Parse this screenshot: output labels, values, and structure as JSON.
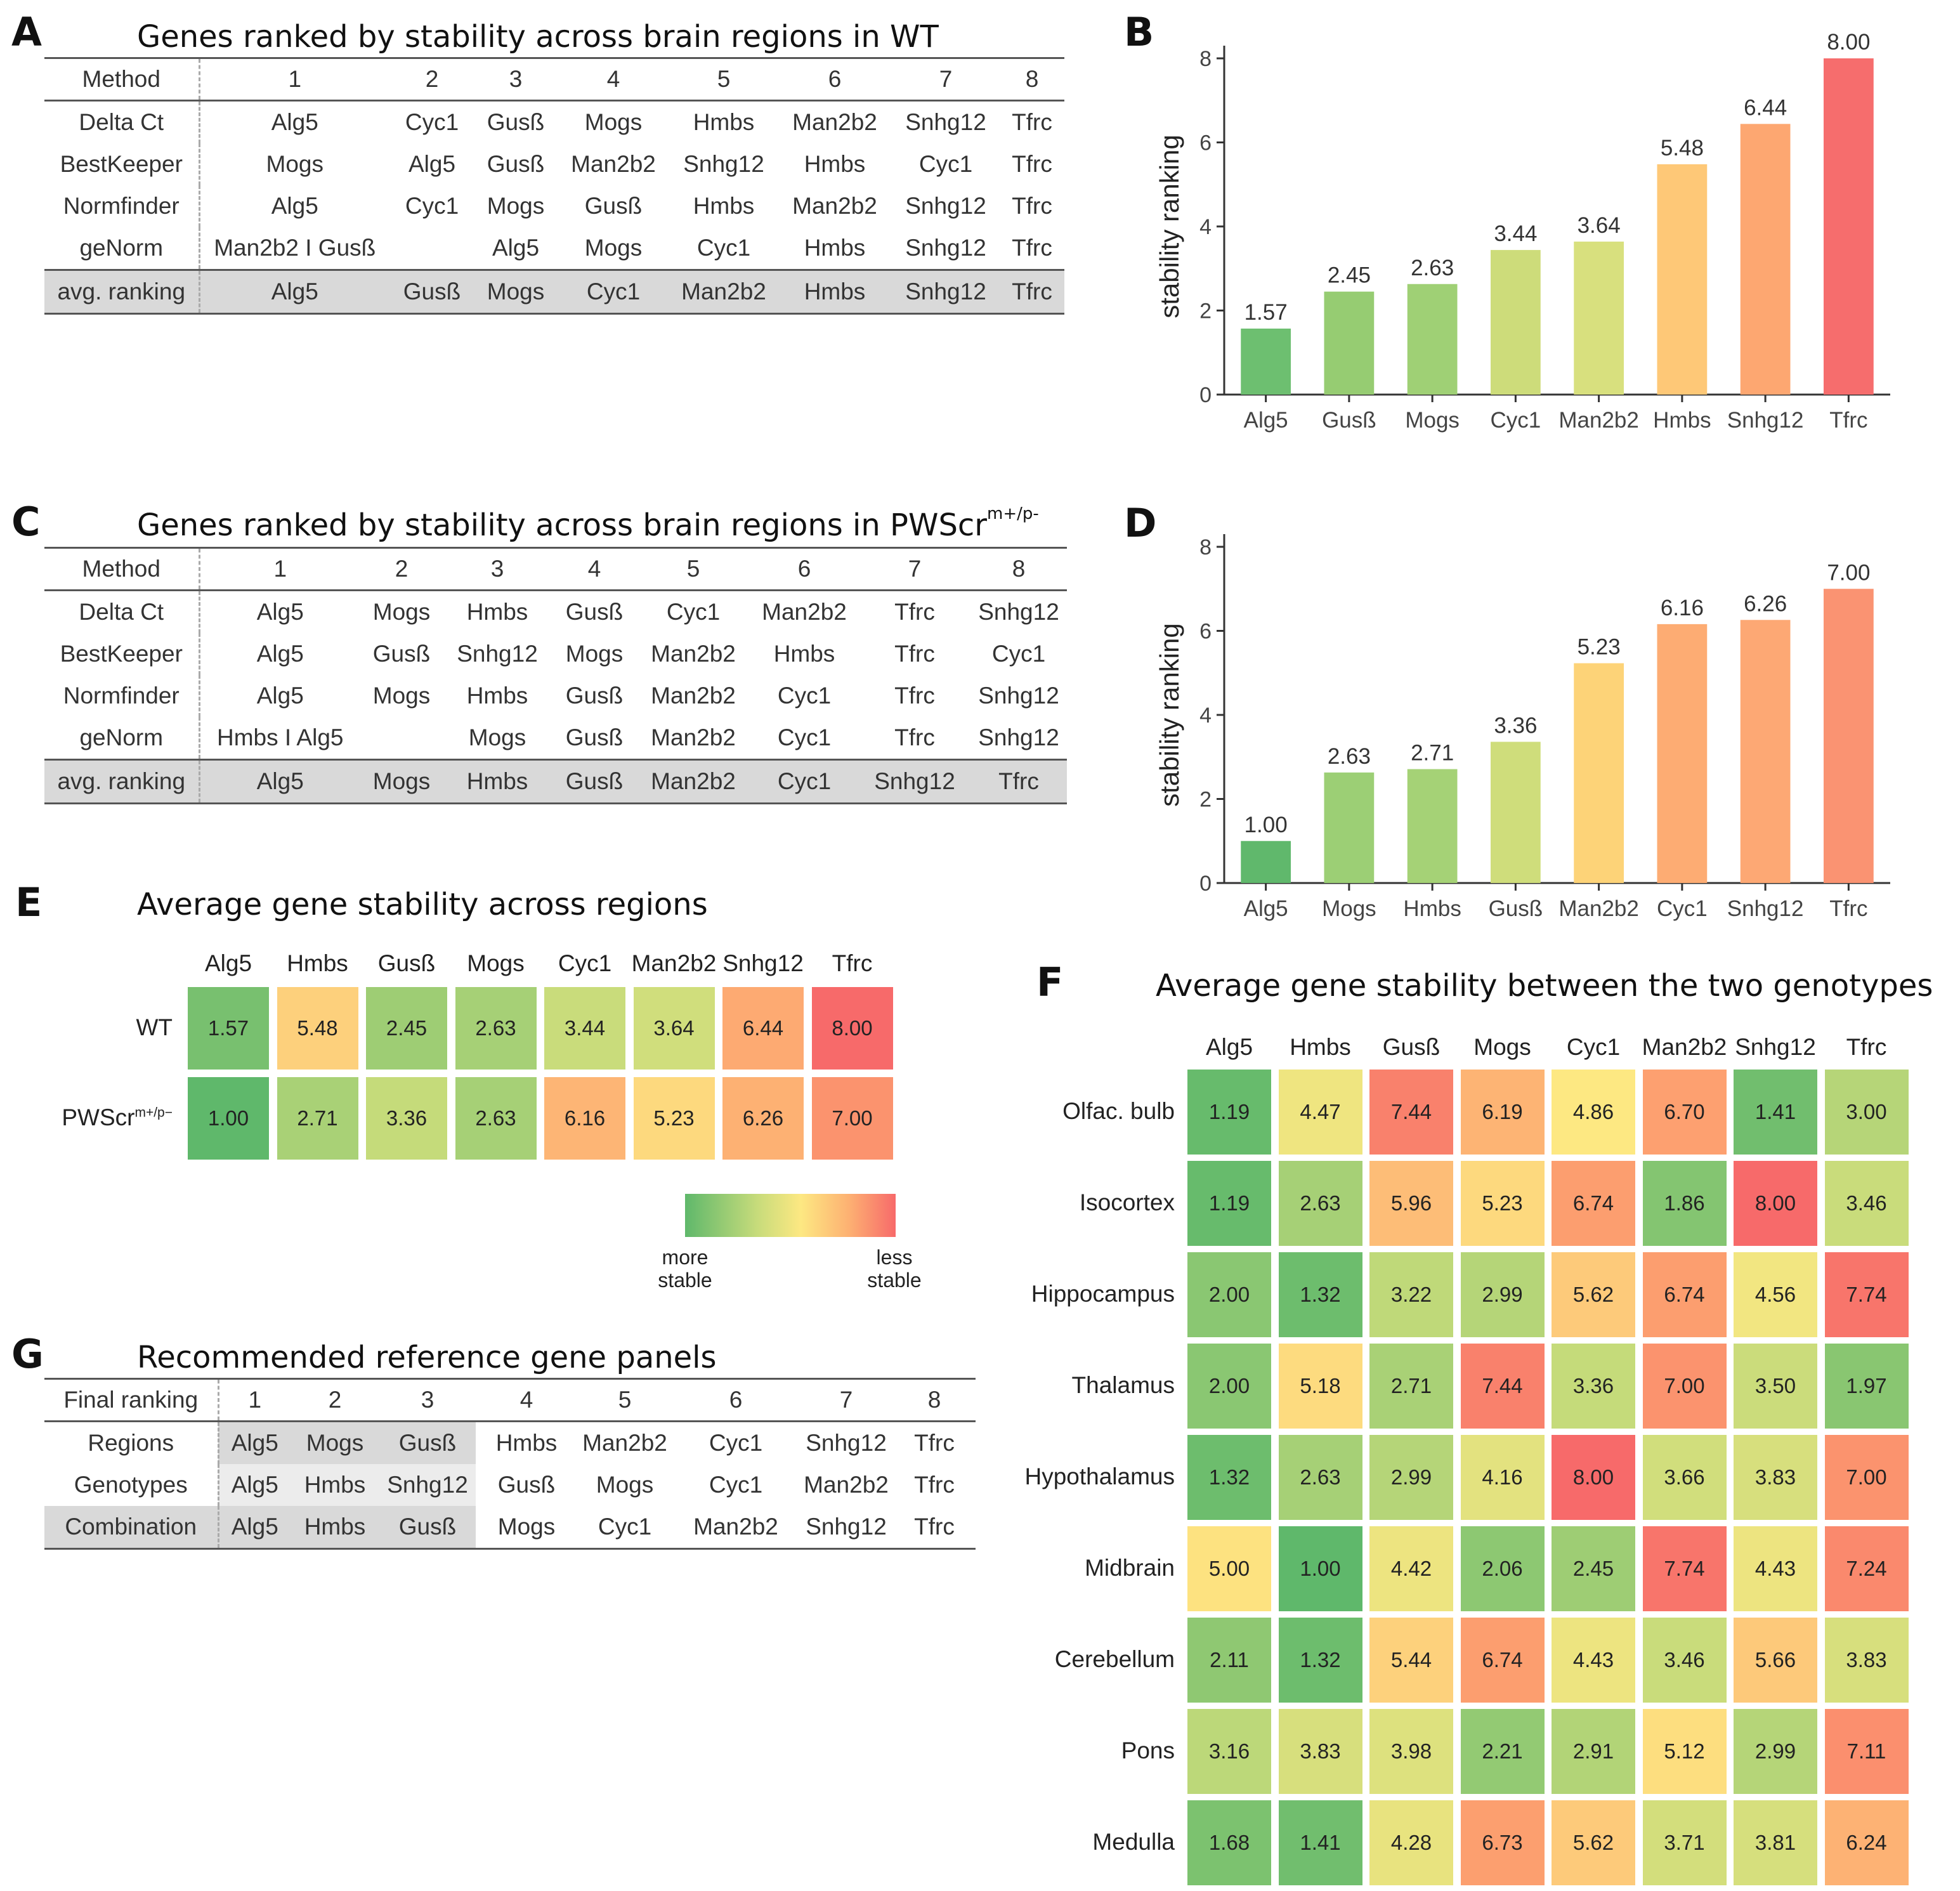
{
  "panels": {
    "A": {
      "letter": "A",
      "title": "Genes ranked by stability across brain regions in WT",
      "header": [
        "Method",
        "1",
        "2",
        "3",
        "4",
        "5",
        "6",
        "7",
        "8"
      ],
      "rows": [
        [
          "Delta Ct",
          "Alg5",
          "Cyc1",
          "Gusß",
          "Mogs",
          "Hmbs",
          "Man2b2",
          "Snhg12",
          "Tfrc"
        ],
        [
          "BestKeeper",
          "Mogs",
          "Alg5",
          "Gusß",
          "Man2b2",
          "Snhg12",
          "Hmbs",
          "Cyc1",
          "Tfrc"
        ],
        [
          "Normfinder",
          "Alg5",
          "Cyc1",
          "Mogs",
          "Gusß",
          "Hmbs",
          "Man2b2",
          "Snhg12",
          "Tfrc"
        ],
        [
          "geNorm",
          "Man2b2 I Gusß",
          "",
          "Alg5",
          "Mogs",
          "Cyc1",
          "Hmbs",
          "Snhg12",
          "Tfrc"
        ]
      ],
      "avg": [
        "avg. ranking",
        "Alg5",
        "Gusß",
        "Mogs",
        "Cyc1",
        "Man2b2",
        "Hmbs",
        "Snhg12",
        "Tfrc"
      ]
    },
    "C": {
      "letter": "C",
      "title": "Genes ranked by stability across brain regions in PWScr",
      "title_sup": "m+/p-",
      "header": [
        "Method",
        "1",
        "2",
        "3",
        "4",
        "5",
        "6",
        "7",
        "8"
      ],
      "rows": [
        [
          "Delta Ct",
          "Alg5",
          "Mogs",
          "Hmbs",
          "Gusß",
          "Cyc1",
          "Man2b2",
          "Tfrc",
          "Snhg12"
        ],
        [
          "BestKeeper",
          "Alg5",
          "Gusß",
          "Snhg12",
          "Mogs",
          "Man2b2",
          "Hmbs",
          "Tfrc",
          "Cyc1"
        ],
        [
          "Normfinder",
          "Alg5",
          "Mogs",
          "Hmbs",
          "Gusß",
          "Man2b2",
          "Cyc1",
          "Tfrc",
          "Snhg12"
        ],
        [
          "geNorm",
          "Hmbs I Alg5",
          "",
          "Mogs",
          "Gusß",
          "Man2b2",
          "Cyc1",
          "Tfrc",
          "Snhg12"
        ]
      ],
      "avg": [
        "avg. ranking",
        "Alg5",
        "Mogs",
        "Hmbs",
        "Gusß",
        "Man2b2",
        "Cyc1",
        "Snhg12",
        "Tfrc"
      ]
    },
    "E": {
      "letter": "E",
      "title": "Average gene stability across regions",
      "legend_more": "more stable",
      "legend_less": "less stable",
      "legend_more_lines": [
        "more",
        "stable"
      ],
      "legend_less_lines": [
        "less",
        "stable"
      ]
    },
    "F": {
      "letter": "F",
      "title": "Average gene stability between the two genotypes"
    },
    "G": {
      "letter": "G",
      "title": "Recommended reference gene panels",
      "header": [
        "Final ranking",
        "1",
        "2",
        "3",
        "4",
        "5",
        "6",
        "7",
        "8"
      ],
      "rows": [
        [
          "Regions",
          "Alg5",
          "Mogs",
          "Gusß",
          "Hmbs",
          "Man2b2",
          "Cyc1",
          "Snhg12",
          "Tfrc"
        ],
        [
          "Genotypes",
          "Alg5",
          "Hmbs",
          "Snhg12",
          "Gusß",
          "Mogs",
          "Cyc1",
          "Man2b2",
          "Tfrc"
        ],
        [
          "Combination",
          "Alg5",
          "Hmbs",
          "Gusß",
          "Mogs",
          "Cyc1",
          "Man2b2",
          "Snhg12",
          "Tfrc"
        ]
      ]
    }
  },
  "chart_data": [
    {
      "id": "B",
      "type": "bar",
      "letter": "B",
      "categories": [
        "Alg5",
        "Gusß",
        "Mogs",
        "Cyc1",
        "Man2b2",
        "Hmbs",
        "Snhg12",
        "Tfrc"
      ],
      "values": [
        1.57,
        2.45,
        2.63,
        3.44,
        3.64,
        5.48,
        6.44,
        8.0
      ],
      "labels": [
        "1.57",
        "2.45",
        "2.63",
        "3.44",
        "3.64",
        "5.48",
        "6.44",
        "8.00"
      ],
      "ylabel": "stability ranking",
      "ylim": [
        0,
        8
      ],
      "yticks": [
        "0",
        "2",
        "4",
        "6",
        "8"
      ],
      "colors": [
        "#6dbf70",
        "#96cc72",
        "#9fd075",
        "#cddc7a",
        "#d8e07e",
        "#fec877",
        "#fda771",
        "#f66d6d"
      ]
    },
    {
      "id": "D",
      "type": "bar",
      "letter": "D",
      "categories": [
        "Alg5",
        "Mogs",
        "Hmbs",
        "Gusß",
        "Man2b2",
        "Cyc1",
        "Snhg12",
        "Tfrc"
      ],
      "values": [
        1.0,
        2.63,
        2.71,
        3.36,
        5.23,
        6.16,
        6.26,
        7.0
      ],
      "labels": [
        "1.00",
        "2.63",
        "2.71",
        "3.36",
        "5.23",
        "6.16",
        "6.26",
        "7.00"
      ],
      "ylabel": "stability ranking",
      "ylim": [
        0,
        8
      ],
      "yticks": [
        "0",
        "2",
        "4",
        "6",
        "8"
      ],
      "colors": [
        "#60b86c",
        "#9ccf75",
        "#a5d276",
        "#cfdd7b",
        "#fdd378",
        "#fdac73",
        "#fda874",
        "#fa9372"
      ]
    },
    {
      "id": "E",
      "type": "heatmap",
      "columns": [
        "Alg5",
        "Hmbs",
        "Gusß",
        "Mogs",
        "Cyc1",
        "Man2b2",
        "Snhg12",
        "Tfrc"
      ],
      "rows": [
        "WT",
        "PWScr"
      ],
      "row_sups": [
        "",
        "m+/p−"
      ],
      "values": [
        [
          1.57,
          5.48,
          2.45,
          2.63,
          3.44,
          3.64,
          6.44,
          8.0
        ],
        [
          1.0,
          2.71,
          3.36,
          2.63,
          6.16,
          5.23,
          6.26,
          7.0
        ]
      ],
      "labels": [
        [
          "1.57",
          "5.48",
          "2.45",
          "2.63",
          "3.44",
          "3.64",
          "6.44",
          "8.00"
        ],
        [
          "1.00",
          "2.71",
          "3.36",
          "2.63",
          "6.16",
          "5.23",
          "6.26",
          "7.00"
        ]
      ],
      "scale_min": 1,
      "scale_max": 8
    },
    {
      "id": "F",
      "type": "heatmap",
      "columns": [
        "Alg5",
        "Hmbs",
        "Gusß",
        "Mogs",
        "Cyc1",
        "Man2b2",
        "Snhg12",
        "Tfrc"
      ],
      "rows": [
        "Olfac. bulb",
        "Isocortex",
        "Hippocampus",
        "Thalamus",
        "Hypothalamus",
        "Midbrain",
        "Cerebellum",
        "Pons",
        "Medulla"
      ],
      "values": [
        [
          1.19,
          4.47,
          7.44,
          6.19,
          4.86,
          6.7,
          1.41,
          3.0
        ],
        [
          1.19,
          2.63,
          5.96,
          5.23,
          6.74,
          1.86,
          8.0,
          3.46
        ],
        [
          2.0,
          1.32,
          3.22,
          2.99,
          5.62,
          6.74,
          4.56,
          7.74
        ],
        [
          2.0,
          5.18,
          2.71,
          7.44,
          3.36,
          7.0,
          3.5,
          1.97
        ],
        [
          1.32,
          2.63,
          2.99,
          4.16,
          8.0,
          3.66,
          3.83,
          7.0
        ],
        [
          5.0,
          1.0,
          4.42,
          2.06,
          2.45,
          7.74,
          4.43,
          7.24
        ],
        [
          2.11,
          1.32,
          5.44,
          6.74,
          4.43,
          3.46,
          5.66,
          3.83
        ],
        [
          3.16,
          3.83,
          3.98,
          2.21,
          2.91,
          5.12,
          2.99,
          7.11
        ],
        [
          1.68,
          1.41,
          4.28,
          6.73,
          5.62,
          3.71,
          3.81,
          6.24
        ]
      ],
      "labels": [
        [
          "1.19",
          "4.47",
          "7.44",
          "6.19",
          "4.86",
          "6.70",
          "1.41",
          "3.00"
        ],
        [
          "1.19",
          "2.63",
          "5.96",
          "5.23",
          "6.74",
          "1.86",
          "8.00",
          "3.46"
        ],
        [
          "2.00",
          "1.32",
          "3.22",
          "2.99",
          "5.62",
          "6.74",
          "4.56",
          "7.74"
        ],
        [
          "2.00",
          "5.18",
          "2.71",
          "7.44",
          "3.36",
          "7.00",
          "3.50",
          "1.97"
        ],
        [
          "1.32",
          "2.63",
          "2.99",
          "4.16",
          "8.00",
          "3.66",
          "3.83",
          "7.00"
        ],
        [
          "5.00",
          "1.00",
          "4.42",
          "2.06",
          "2.45",
          "7.74",
          "4.43",
          "7.24"
        ],
        [
          "2.11",
          "1.32",
          "5.44",
          "6.74",
          "4.43",
          "3.46",
          "5.66",
          "3.83"
        ],
        [
          "3.16",
          "3.83",
          "3.98",
          "2.21",
          "2.91",
          "5.12",
          "2.99",
          "7.11"
        ],
        [
          "1.68",
          "1.41",
          "4.28",
          "6.73",
          "5.62",
          "3.71",
          "3.81",
          "6.24"
        ]
      ],
      "scale_min": 1,
      "scale_max": 8
    }
  ],
  "scale_colors": {
    "stable": "#5fb86b",
    "mid_green": "#c9dc7b",
    "yellow": "#fde882",
    "orange": "#fda470",
    "unstable": "#f76a6a"
  }
}
